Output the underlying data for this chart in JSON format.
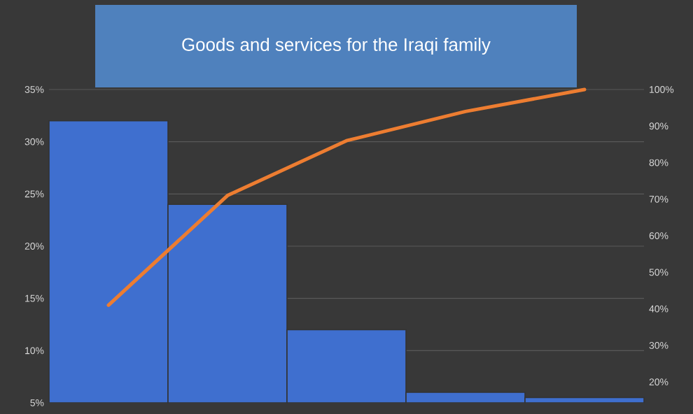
{
  "chart_data": {
    "type": "bar",
    "title": "Goods and services for the Iraqi family",
    "categories": [
      null,
      null,
      null,
      null,
      null
    ],
    "series": [
      {
        "color": "#3f6fcf",
        "values": [
          32,
          24,
          12,
          6,
          5.5
        ]
      },
      {
        "type": "line",
        "axis": "y2",
        "color": "#ed7d31",
        "values": [
          41,
          71,
          86,
          94,
          100
        ]
      }
    ],
    "ylim": [
      5,
      35
    ],
    "yticks": [
      {
        "value": 5,
        "label": "5%"
      },
      {
        "value": 10,
        "label": "10%"
      },
      {
        "value": 15,
        "label": "15%"
      },
      {
        "value": 20,
        "label": "20%"
      },
      {
        "value": 25,
        "label": "25%"
      },
      {
        "value": 30,
        "label": "30%"
      },
      {
        "value": 35,
        "label": "35%"
      }
    ],
    "y2lim": [
      14.3,
      100
    ],
    "y2ticks": [
      {
        "value": 20,
        "label": "20%"
      },
      {
        "value": 30,
        "label": "30%"
      },
      {
        "value": 40,
        "label": "40%"
      },
      {
        "value": 50,
        "label": "50%"
      },
      {
        "value": 60,
        "label": "60%"
      },
      {
        "value": 70,
        "label": "70%"
      },
      {
        "value": 80,
        "label": "80%"
      },
      {
        "value": 90,
        "label": "90%"
      },
      {
        "value": 100,
        "label": "100%"
      }
    ],
    "grid": "y",
    "marker": "none",
    "line_style": "solid"
  }
}
